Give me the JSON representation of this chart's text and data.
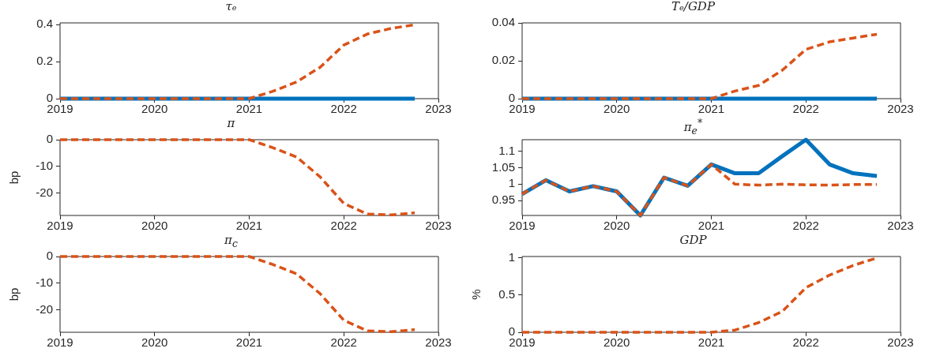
{
  "chart_data": [
    {
      "type": "line",
      "title": "τₑ",
      "x": [
        2019,
        2019.25,
        2019.5,
        2019.75,
        2020,
        2020.25,
        2020.5,
        2020.75,
        2021,
        2021.25,
        2021.5,
        2021.75,
        2022,
        2022.25,
        2022.5,
        2022.75
      ],
      "xlim": [
        2019,
        2023
      ],
      "xticks": [
        2019,
        2020,
        2021,
        2022,
        2023
      ],
      "ylim": [
        0,
        0.41
      ],
      "yticks": [
        0,
        0.2,
        0.4
      ],
      "grid": false,
      "legend": false,
      "series": [
        {
          "color": "#0072bd",
          "line_style": "solid",
          "values": [
            0,
            0,
            0,
            0,
            0,
            0,
            0,
            0,
            0,
            0,
            0,
            0,
            0,
            0,
            0,
            0
          ]
        },
        {
          "color": "#d95319",
          "line_style": "dashed",
          "values": [
            0,
            0,
            0,
            0,
            0,
            0,
            0,
            0,
            0,
            0.04,
            0.09,
            0.17,
            0.29,
            0.35,
            0.38,
            0.4
          ]
        }
      ]
    },
    {
      "type": "line",
      "title": "Tₑ/GDP",
      "x": [
        2019,
        2019.25,
        2019.5,
        2019.75,
        2020,
        2020.25,
        2020.5,
        2020.75,
        2021,
        2021.25,
        2021.5,
        2021.75,
        2022,
        2022.25,
        2022.5,
        2022.75
      ],
      "xlim": [
        2019,
        2023
      ],
      "xticks": [
        2019,
        2020,
        2021,
        2022,
        2023
      ],
      "ylim": [
        0,
        0.04
      ],
      "yticks": [
        0,
        0.02,
        0.04
      ],
      "grid": false,
      "legend": false,
      "series": [
        {
          "color": "#0072bd",
          "line_style": "solid",
          "values": [
            0,
            0,
            0,
            0,
            0,
            0,
            0,
            0,
            0,
            0,
            0,
            0,
            0,
            0,
            0,
            0
          ]
        },
        {
          "color": "#d95319",
          "line_style": "dashed",
          "values": [
            0,
            0,
            0,
            0,
            0,
            0,
            0,
            0,
            0,
            0.004,
            0.007,
            0.015,
            0.026,
            0.03,
            0.032,
            0.034
          ]
        }
      ]
    },
    {
      "type": "line",
      "title": "π",
      "ylabel": "bp",
      "x": [
        2019,
        2019.25,
        2019.5,
        2019.75,
        2020,
        2020.25,
        2020.5,
        2020.75,
        2021,
        2021.25,
        2021.5,
        2021.75,
        2022,
        2022.25,
        2022.5,
        2022.75
      ],
      "xlim": [
        2019,
        2023
      ],
      "xticks": [
        2019,
        2020,
        2021,
        2022,
        2023
      ],
      "ylim": [
        -28.5,
        0
      ],
      "yticks": [
        -20,
        -10,
        0
      ],
      "grid": false,
      "legend": false,
      "series": [
        {
          "color": "#d95319",
          "line_style": "dashed",
          "values": [
            0,
            0,
            0,
            0,
            0,
            0,
            0,
            0,
            0,
            -3,
            -6.5,
            -14,
            -24,
            -28,
            -28.3,
            -27.5
          ]
        }
      ]
    },
    {
      "type": "line",
      "title": "π$_{e}$$^{*}$",
      "x": [
        2019,
        2019.25,
        2019.5,
        2019.75,
        2020,
        2020.25,
        2020.5,
        2020.75,
        2021,
        2021.25,
        2021.5,
        2021.75,
        2022,
        2022.25,
        2022.5,
        2022.75
      ],
      "xlim": [
        2019,
        2023
      ],
      "xticks": [
        2019,
        2020,
        2021,
        2022,
        2023
      ],
      "ylim": [
        0.905,
        1.135
      ],
      "yticks": [
        0.95,
        1,
        1.05,
        1.1
      ],
      "grid": false,
      "legend": false,
      "series": [
        {
          "color": "#0072bd",
          "line_style": "solid",
          "values": [
            0.97,
            1.012,
            0.978,
            0.994,
            0.978,
            0.905,
            1.02,
            0.995,
            1.06,
            1.033,
            1.033,
            1.085,
            1.135,
            1.06,
            1.033,
            1.025
          ]
        },
        {
          "color": "#d95319",
          "line_style": "dashed",
          "values": [
            0.97,
            1.012,
            0.978,
            0.994,
            0.978,
            0.905,
            1.02,
            0.995,
            1.06,
            1.0,
            0.997,
            1.0,
            0.998,
            0.997,
            0.999,
            0.999
          ]
        }
      ]
    },
    {
      "type": "line",
      "title": "π$_{c}$",
      "ylabel": "bp",
      "x": [
        2019,
        2019.25,
        2019.5,
        2019.75,
        2020,
        2020.25,
        2020.5,
        2020.75,
        2021,
        2021.25,
        2021.5,
        2021.75,
        2022,
        2022.25,
        2022.5,
        2022.75
      ],
      "xlim": [
        2019,
        2023
      ],
      "xticks": [
        2019,
        2020,
        2021,
        2022,
        2023
      ],
      "ylim": [
        -28.5,
        0
      ],
      "yticks": [
        -20,
        -10,
        0
      ],
      "grid": false,
      "legend": false,
      "series": [
        {
          "color": "#d95319",
          "line_style": "dashed",
          "values": [
            0,
            0,
            0,
            0,
            0,
            0,
            0,
            0,
            0,
            -3,
            -6.5,
            -14,
            -24,
            -28,
            -28.3,
            -27.5
          ]
        }
      ]
    },
    {
      "type": "line",
      "title": "GDP",
      "ylabel": "%",
      "x": [
        2019,
        2019.25,
        2019.5,
        2019.75,
        2020,
        2020.25,
        2020.5,
        2020.75,
        2021,
        2021.25,
        2021.5,
        2021.75,
        2022,
        2022.25,
        2022.5,
        2022.75
      ],
      "xlim": [
        2019,
        2023
      ],
      "xticks": [
        2019,
        2020,
        2021,
        2022,
        2023
      ],
      "ylim": [
        0,
        1.02
      ],
      "yticks": [
        0,
        0.5,
        1
      ],
      "grid": false,
      "legend": false,
      "series": [
        {
          "color": "#d95319",
          "line_style": "dashed",
          "values": [
            0,
            0,
            0,
            0,
            0,
            0,
            0,
            0,
            0,
            0.03,
            0.13,
            0.28,
            0.6,
            0.77,
            0.9,
            1.0
          ]
        }
      ]
    }
  ]
}
